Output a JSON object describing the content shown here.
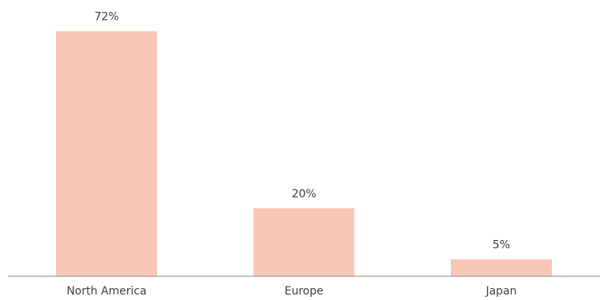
{
  "chart_data": {
    "type": "bar",
    "title": "",
    "xlabel": "",
    "ylabel": "",
    "categories": [
      "North America",
      "Europe",
      "Japan"
    ],
    "values": [
      72,
      20,
      5
    ],
    "data_labels": [
      "72%",
      "20%",
      "5%"
    ],
    "unit": "%",
    "ylim": [
      0,
      80
    ],
    "grid": false,
    "legend": "none",
    "bar_color": "#f8c6b6",
    "axis_color": "#8a8a8a",
    "text_color": "#3d3d3d"
  }
}
